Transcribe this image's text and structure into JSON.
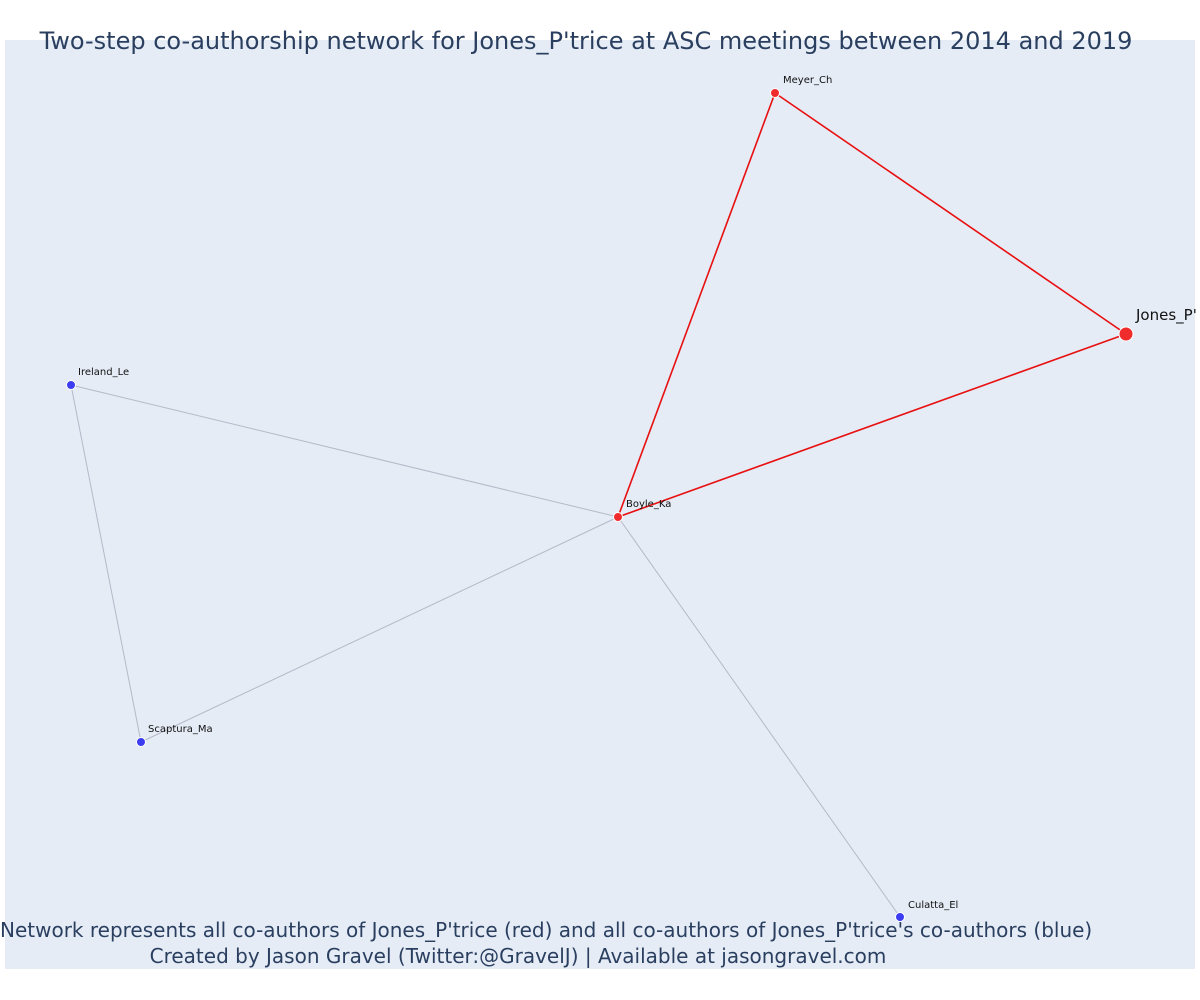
{
  "title": "Two-step co-authorship network for Jones_P'trice at ASC meetings between 2014 and 2019",
  "caption": {
    "line1": "Network represents all co-authors of Jones_P'trice (red) and all co-authors of Jones_P'trice's co-authors (blue)",
    "line2": "Created by Jason Gravel (Twitter:@GravelJ) | Available at jasongravel.com"
  },
  "colors": {
    "background": "#e5ecf6",
    "direct_coauthor": "#ef2b2b",
    "second_step_coauthor": "#3c3cf0",
    "direct_edge": "#e81010",
    "indirect_edge": "#b6b9c8",
    "text": "#2a3f5f"
  },
  "chart_data": {
    "type": "network",
    "focal_node": "Jones_P'",
    "nodes": [
      {
        "id": "Jones_P'",
        "label": "Jones_P'",
        "group": "focal"
      },
      {
        "id": "Meyer_Ch",
        "label": "Meyer_Ch",
        "group": "direct"
      },
      {
        "id": "Boyle_Ka",
        "label": "Boyle_Ka",
        "group": "direct"
      },
      {
        "id": "Ireland_Le",
        "label": "Ireland_Le",
        "group": "second-step"
      },
      {
        "id": "Scaptura_Ma",
        "label": "Scaptura_Ma",
        "group": "second-step"
      },
      {
        "id": "Culatta_El",
        "label": "Culatta_El",
        "group": "second-step"
      }
    ],
    "edges": [
      {
        "source": "Meyer_Ch",
        "target": "Jones_P'",
        "group": "direct"
      },
      {
        "source": "Boyle_Ka",
        "target": "Jones_P'",
        "group": "direct"
      },
      {
        "source": "Boyle_Ka",
        "target": "Meyer_Ch",
        "group": "direct"
      },
      {
        "source": "Boyle_Ka",
        "target": "Ireland_Le",
        "group": "indirect"
      },
      {
        "source": "Boyle_Ka",
        "target": "Scaptura_Ma",
        "group": "indirect"
      },
      {
        "source": "Boyle_Ka",
        "target": "Culatta_El",
        "group": "indirect"
      },
      {
        "source": "Ireland_Le",
        "target": "Scaptura_Ma",
        "group": "indirect"
      }
    ]
  }
}
